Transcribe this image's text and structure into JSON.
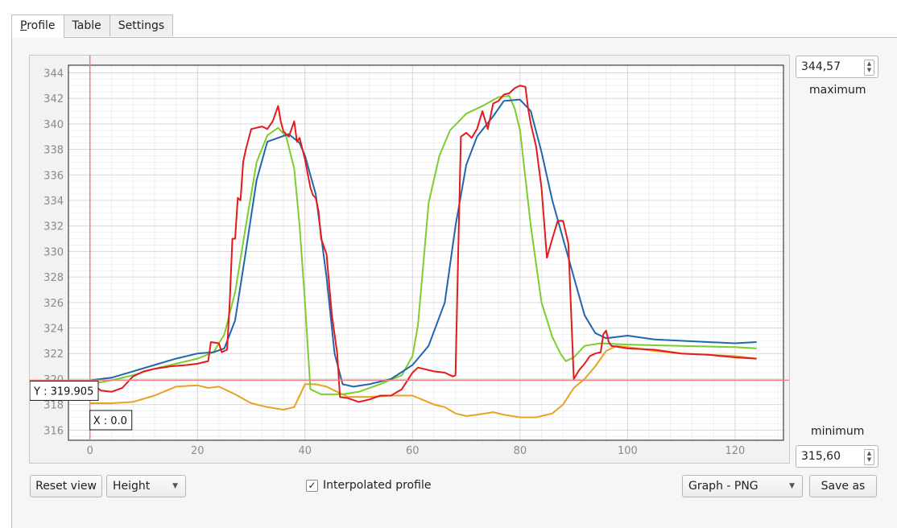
{
  "tabs": [
    {
      "label_first": "P",
      "label_rest": "rofile",
      "active": true
    },
    {
      "label": "Table",
      "active": false
    },
    {
      "label": "Settings",
      "active": false
    }
  ],
  "max_panel": {
    "value": "344,57",
    "label": "maximum"
  },
  "min_panel": {
    "value": "315,60",
    "label": "minimum"
  },
  "cursor": {
    "x_label": "X : 0.0",
    "y_label": "Y : 319.905",
    "x": 0.0,
    "y": 319.905
  },
  "controls": {
    "reset_view": "Reset view",
    "mode_select": "Height",
    "interpolated_label": "Interpolated profile",
    "interpolated_checked": true,
    "export_select": "Graph - PNG",
    "save_as": "Save as"
  },
  "colors": {
    "red": "#e41a1c",
    "blue": "#2166ac",
    "green": "#7ccd2e",
    "orange": "#e7a21f",
    "cursor": "#f08080"
  },
  "chart_data": {
    "type": "line",
    "xlim": [
      -4,
      129
    ],
    "ylim": [
      315.2,
      344.6
    ],
    "xticks": [
      0,
      20,
      40,
      60,
      80,
      100,
      120
    ],
    "yticks": [
      316,
      318,
      320,
      322,
      324,
      326,
      328,
      330,
      332,
      334,
      336,
      338,
      340,
      342,
      344
    ],
    "grid": true,
    "series": [
      {
        "color": "red",
        "points": [
          [
            0,
            319.8
          ],
          [
            2,
            319.1
          ],
          [
            4,
            319.0
          ],
          [
            6,
            319.3
          ],
          [
            8,
            320.2
          ],
          [
            10,
            320.6
          ],
          [
            12,
            320.8
          ],
          [
            15,
            321.0
          ],
          [
            18,
            321.1
          ],
          [
            20,
            321.2
          ],
          [
            22,
            321.4
          ],
          [
            22.5,
            322.9
          ],
          [
            24,
            322.8
          ],
          [
            24.5,
            322.1
          ],
          [
            25.5,
            322.3
          ],
          [
            26,
            326
          ],
          [
            26.5,
            331
          ],
          [
            27,
            331
          ],
          [
            27.5,
            334.2
          ],
          [
            28,
            334.0
          ],
          [
            28.5,
            337
          ],
          [
            29,
            338
          ],
          [
            30,
            339.6
          ],
          [
            32,
            339.8
          ],
          [
            33,
            339.6
          ],
          [
            34,
            340.2
          ],
          [
            35,
            341.4
          ],
          [
            35.5,
            340.2
          ],
          [
            36,
            339.4
          ],
          [
            37,
            339.0
          ],
          [
            38,
            340.2
          ],
          [
            38.5,
            338.6
          ],
          [
            39,
            338.9
          ],
          [
            40,
            337.2
          ],
          [
            41,
            335.0
          ],
          [
            41.5,
            334.4
          ],
          [
            42,
            334.2
          ],
          [
            42.5,
            333.2
          ],
          [
            43,
            331.0
          ],
          [
            44,
            329.8
          ],
          [
            45,
            325.0
          ],
          [
            46,
            322.0
          ],
          [
            46.5,
            318.6
          ],
          [
            48,
            318.5
          ],
          [
            50,
            318.2
          ],
          [
            52,
            318.4
          ],
          [
            54,
            318.7
          ],
          [
            56,
            318.7
          ],
          [
            58,
            319.2
          ],
          [
            60,
            320.5
          ],
          [
            61,
            320.9
          ],
          [
            62,
            320.8
          ],
          [
            64,
            320.6
          ],
          [
            66,
            320.5
          ],
          [
            67.5,
            320.2
          ],
          [
            68,
            320.3
          ],
          [
            68.5,
            330.0
          ],
          [
            69,
            339.0
          ],
          [
            70,
            339.3
          ],
          [
            71,
            338.9
          ],
          [
            72,
            339.6
          ],
          [
            73,
            341.0
          ],
          [
            74,
            339.6
          ],
          [
            75,
            341.6
          ],
          [
            76,
            341.8
          ],
          [
            77,
            342.3
          ],
          [
            78,
            342.4
          ],
          [
            79,
            342.8
          ],
          [
            80,
            343.0
          ],
          [
            81,
            342.9
          ],
          [
            81.5,
            341.2
          ],
          [
            82,
            340.0
          ],
          [
            83,
            338.2
          ],
          [
            84,
            335.0
          ],
          [
            85,
            329.5
          ],
          [
            86,
            331.0
          ],
          [
            87,
            332.4
          ],
          [
            88,
            332.4
          ],
          [
            89,
            330.6
          ],
          [
            90,
            320.0
          ],
          [
            91,
            320.7
          ],
          [
            92,
            321.2
          ],
          [
            93,
            321.8
          ],
          [
            94,
            322.0
          ],
          [
            95,
            322.1
          ],
          [
            95.5,
            323.5
          ],
          [
            96,
            323.8
          ],
          [
            96.5,
            322.9
          ],
          [
            97,
            322.6
          ],
          [
            100,
            322.4
          ],
          [
            105,
            322.3
          ],
          [
            110,
            322.0
          ],
          [
            115,
            321.9
          ],
          [
            120,
            321.7
          ],
          [
            124,
            321.6
          ]
        ]
      },
      {
        "color": "blue",
        "points": [
          [
            0,
            319.9
          ],
          [
            4,
            320.1
          ],
          [
            8,
            320.6
          ],
          [
            12,
            321.1
          ],
          [
            16,
            321.6
          ],
          [
            20,
            322.0
          ],
          [
            23,
            322.1
          ],
          [
            25,
            322.4
          ],
          [
            27,
            324.6
          ],
          [
            29,
            330.0
          ],
          [
            31,
            335.6
          ],
          [
            33,
            338.6
          ],
          [
            35,
            338.9
          ],
          [
            37,
            339.2
          ],
          [
            39,
            338.5
          ],
          [
            40,
            337.5
          ],
          [
            42,
            334.5
          ],
          [
            44,
            328.0
          ],
          [
            45.5,
            322.0
          ],
          [
            47,
            319.6
          ],
          [
            49,
            319.4
          ],
          [
            52,
            319.6
          ],
          [
            56,
            320.0
          ],
          [
            60,
            321.1
          ],
          [
            63,
            322.6
          ],
          [
            66,
            326.0
          ],
          [
            68,
            332.0
          ],
          [
            70,
            336.8
          ],
          [
            72,
            339.0
          ],
          [
            75,
            340.6
          ],
          [
            77,
            341.8
          ],
          [
            80,
            341.9
          ],
          [
            82,
            341.0
          ],
          [
            84,
            337.8
          ],
          [
            86,
            334.0
          ],
          [
            88,
            331.0
          ],
          [
            90,
            328.0
          ],
          [
            92,
            325.0
          ],
          [
            94,
            323.6
          ],
          [
            96,
            323.2
          ],
          [
            100,
            323.4
          ],
          [
            105,
            323.1
          ],
          [
            110,
            323.0
          ],
          [
            115,
            322.9
          ],
          [
            120,
            322.8
          ],
          [
            124,
            322.9
          ]
        ]
      },
      {
        "color": "green",
        "points": [
          [
            0,
            319.6
          ],
          [
            4,
            319.9
          ],
          [
            8,
            320.3
          ],
          [
            12,
            320.8
          ],
          [
            16,
            321.2
          ],
          [
            20,
            321.6
          ],
          [
            23,
            322.1
          ],
          [
            25,
            323.5
          ],
          [
            27,
            326.8
          ],
          [
            29,
            332.0
          ],
          [
            31,
            337.0
          ],
          [
            33,
            339.1
          ],
          [
            35,
            339.7
          ],
          [
            36.5,
            339.0
          ],
          [
            38,
            336.5
          ],
          [
            39,
            332.0
          ],
          [
            40,
            326.0
          ],
          [
            41,
            319.2
          ],
          [
            43,
            318.8
          ],
          [
            47,
            318.8
          ],
          [
            50,
            319.0
          ],
          [
            54,
            319.6
          ],
          [
            58,
            320.3
          ],
          [
            60,
            321.8
          ],
          [
            61,
            324.2
          ],
          [
            62,
            329.0
          ],
          [
            63,
            333.8
          ],
          [
            65,
            337.5
          ],
          [
            67,
            339.5
          ],
          [
            70,
            340.8
          ],
          [
            73,
            341.4
          ],
          [
            76,
            342.1
          ],
          [
            78,
            342.2
          ],
          [
            79,
            341.2
          ],
          [
            80,
            339.5
          ],
          [
            82,
            332.0
          ],
          [
            84,
            326.0
          ],
          [
            86,
            323.3
          ],
          [
            87.5,
            322.0
          ],
          [
            88.5,
            321.4
          ],
          [
            90,
            321.7
          ],
          [
            92,
            322.6
          ],
          [
            95,
            322.8
          ],
          [
            100,
            322.7
          ],
          [
            110,
            322.6
          ],
          [
            120,
            322.5
          ],
          [
            124,
            322.4
          ]
        ]
      },
      {
        "color": "orange",
        "points": [
          [
            0,
            318.1
          ],
          [
            4,
            318.1
          ],
          [
            8,
            318.2
          ],
          [
            12,
            318.7
          ],
          [
            16,
            319.4
          ],
          [
            20,
            319.5
          ],
          [
            22,
            319.3
          ],
          [
            24,
            319.4
          ],
          [
            27,
            318.8
          ],
          [
            30,
            318.1
          ],
          [
            33,
            317.8
          ],
          [
            36,
            317.6
          ],
          [
            38,
            317.8
          ],
          [
            40,
            319.6
          ],
          [
            42,
            319.6
          ],
          [
            44,
            319.4
          ],
          [
            46,
            319.0
          ],
          [
            48,
            318.6
          ],
          [
            52,
            318.6
          ],
          [
            56,
            318.7
          ],
          [
            60,
            318.7
          ],
          [
            64,
            318.0
          ],
          [
            66,
            317.8
          ],
          [
            68,
            317.3
          ],
          [
            70,
            317.1
          ],
          [
            72,
            317.2
          ],
          [
            75,
            317.4
          ],
          [
            77,
            317.2
          ],
          [
            80,
            317.0
          ],
          [
            83,
            317.0
          ],
          [
            86,
            317.3
          ],
          [
            88,
            318.0
          ],
          [
            90,
            319.3
          ],
          [
            92,
            320.0
          ],
          [
            94,
            321.0
          ],
          [
            96,
            322.2
          ],
          [
            98,
            322.6
          ],
          [
            100,
            322.5
          ],
          [
            105,
            322.2
          ],
          [
            110,
            322.0
          ],
          [
            115,
            321.9
          ],
          [
            120,
            321.8
          ],
          [
            124,
            321.6
          ]
        ]
      }
    ]
  }
}
